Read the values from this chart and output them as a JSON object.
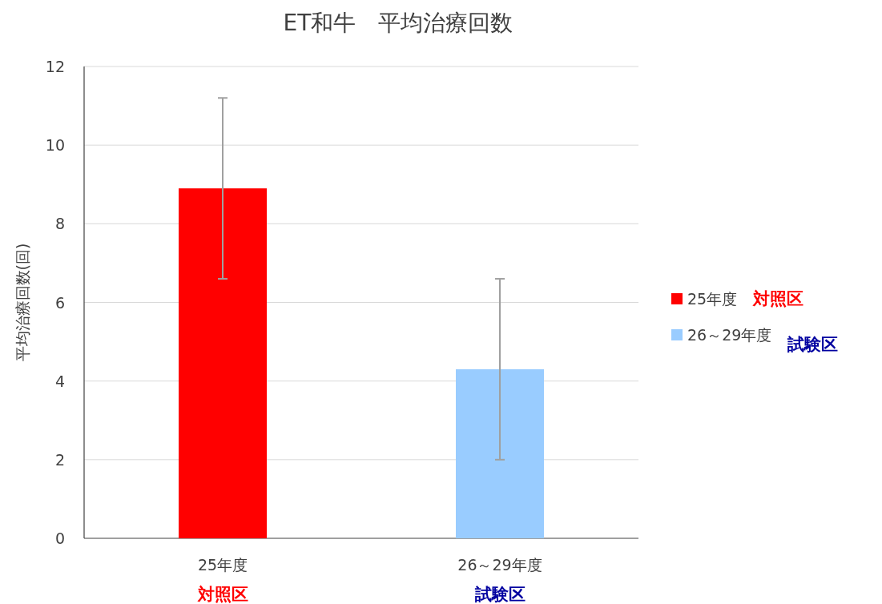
{
  "chart_data": {
    "type": "bar",
    "title": "ET和牛　平均治療回数",
    "ylabel": "平均治療回数(回)",
    "categories": [
      "25年度",
      "26～29年度"
    ],
    "series": [
      {
        "name": "25年度",
        "color": "#ff0000",
        "values": [
          8.9,
          null
        ],
        "errors": [
          [
            6.6,
            11.2
          ],
          null
        ]
      },
      {
        "name": "26～29年度",
        "color": "#99ccff",
        "values": [
          null,
          4.3
        ],
        "errors": [
          null,
          [
            2.0,
            6.6
          ]
        ]
      }
    ],
    "annotations": [
      "対照区",
      "試験区"
    ],
    "ylim": [
      0,
      12
    ],
    "yticks": [
      0,
      2,
      4,
      6,
      8,
      10,
      12
    ],
    "grid": "y",
    "legend": "right"
  }
}
